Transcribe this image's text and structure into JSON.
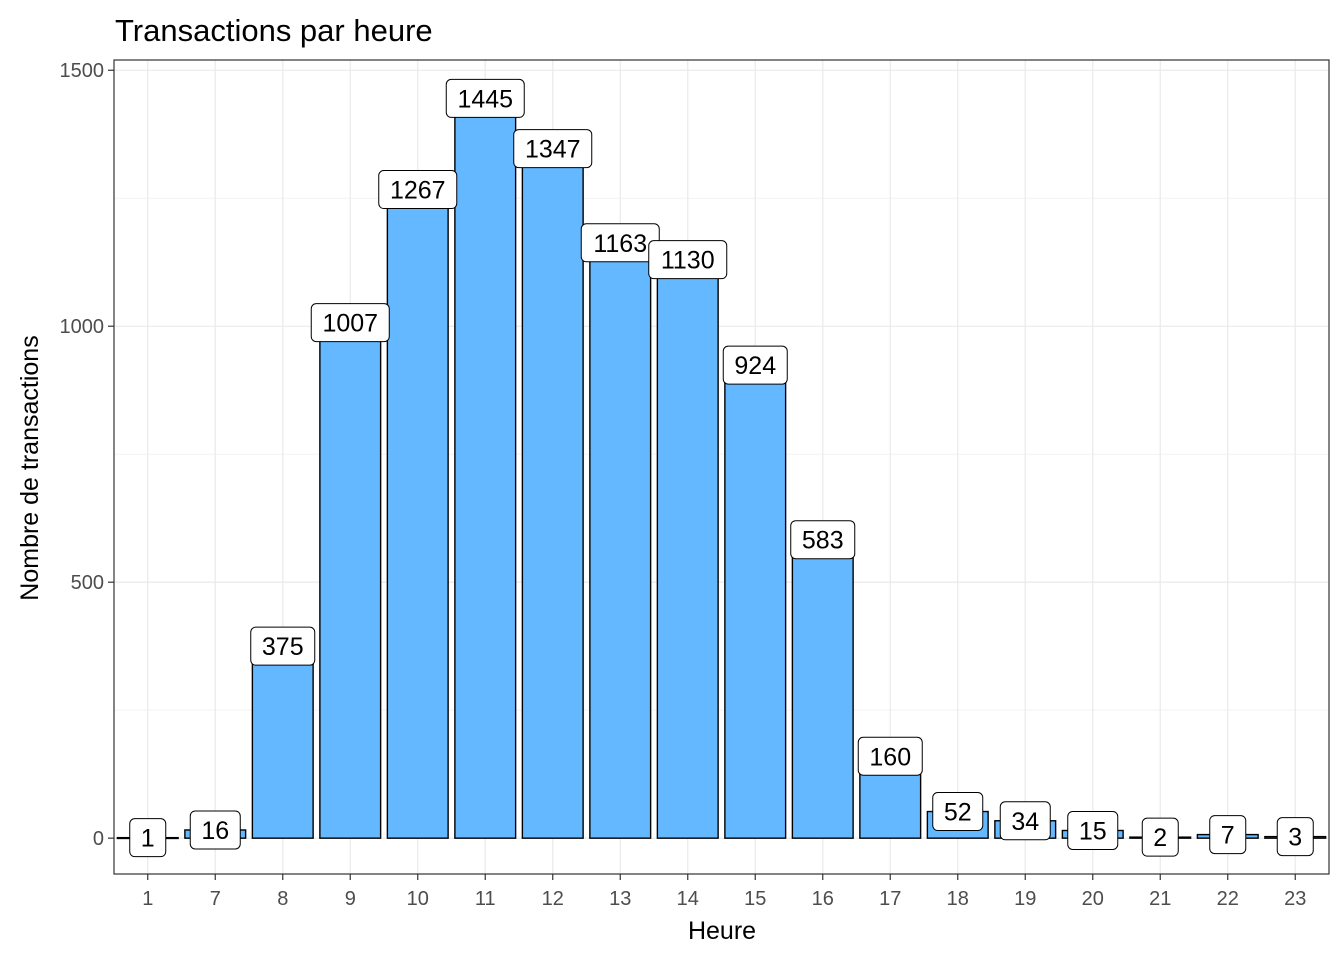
{
  "chart_data": {
    "type": "bar",
    "title": "Transactions par  heure",
    "xlabel": "Heure",
    "ylabel": "Nombre de transactions",
    "categories": [
      "1",
      "7",
      "8",
      "9",
      "10",
      "11",
      "12",
      "13",
      "14",
      "15",
      "16",
      "17",
      "18",
      "19",
      "20",
      "21",
      "22",
      "23"
    ],
    "values": [
      1,
      16,
      375,
      1007,
      1267,
      1445,
      1347,
      1163,
      1130,
      924,
      583,
      160,
      52,
      34,
      15,
      2,
      7,
      3
    ],
    "data_labels": [
      "1",
      "16",
      "375",
      "1007",
      "1267",
      "1445",
      "1347",
      "1163",
      "1130",
      "924",
      "583",
      "160",
      "52",
      "34",
      "15",
      "2",
      "7",
      "3"
    ],
    "yticks": [
      0,
      500,
      1000,
      1500
    ],
    "ytick_labels": [
      "0",
      "500",
      "1000",
      "1500"
    ],
    "ylim": [
      -70,
      1520
    ],
    "bar_color": "#63B8FF",
    "grid": true,
    "legend": "none"
  }
}
